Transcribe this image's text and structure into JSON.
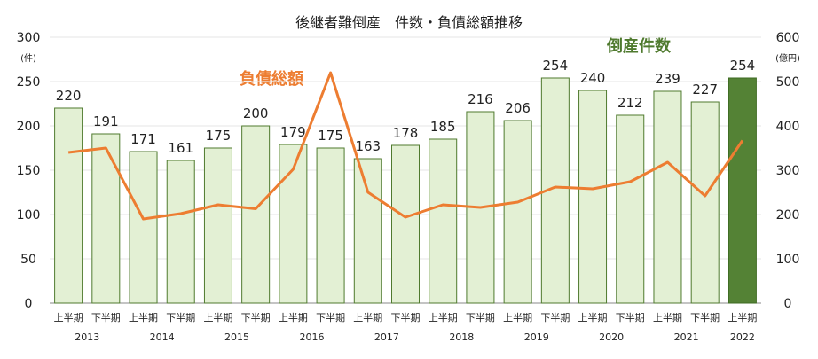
{
  "chart_data": {
    "type": "bar",
    "title": "後継者難倒産　件数・負債総額推移",
    "left_axis": {
      "ticks": [
        "0",
        "50",
        "100",
        "150",
        "200",
        "250",
        "300"
      ],
      "ylim": [
        0,
        300
      ],
      "unit": "(件)"
    },
    "right_axis": {
      "ticks": [
        "0",
        "100",
        "200",
        "300",
        "400",
        "500",
        "600"
      ],
      "ylim": [
        0,
        600
      ],
      "unit": "(億円)"
    },
    "categories": [
      "上半期",
      "下半期",
      "上半期",
      "下半期",
      "上半期",
      "下半期",
      "上半期",
      "下半期",
      "上半期",
      "下半期",
      "上半期",
      "下半期",
      "上半期",
      "下半期",
      "上半期",
      "下半期",
      "上半期",
      "下半期",
      "上半期"
    ],
    "years": [
      "2013",
      "2014",
      "2015",
      "2016",
      "2017",
      "2018",
      "2019",
      "2020",
      "2021",
      "2022"
    ],
    "series": [
      {
        "name": "倒産件数",
        "type": "bar",
        "axis": "left",
        "color": "#e3f0d4",
        "edge": "#4f7a2e",
        "highlight_color": "#548235",
        "values": [
          220,
          191,
          171,
          161,
          175,
          200,
          179,
          175,
          163,
          178,
          185,
          216,
          206,
          254,
          240,
          212,
          239,
          227,
          254
        ],
        "labels": [
          "220",
          "191",
          "171",
          "161",
          "175",
          "200",
          "179",
          "175",
          "163",
          "178",
          "185",
          "216",
          "206",
          "254",
          "240",
          "212",
          "239",
          "227",
          "254"
        ]
      },
      {
        "name": "負債総額",
        "type": "line",
        "axis": "right",
        "color": "#ed7d31",
        "values": [
          340,
          350,
          190,
          202,
          222,
          213,
          302,
          520,
          250,
          194,
          222,
          216,
          228,
          262,
          258,
          274,
          318,
          242,
          367
        ]
      }
    ],
    "legend_placement": "inline labels"
  }
}
